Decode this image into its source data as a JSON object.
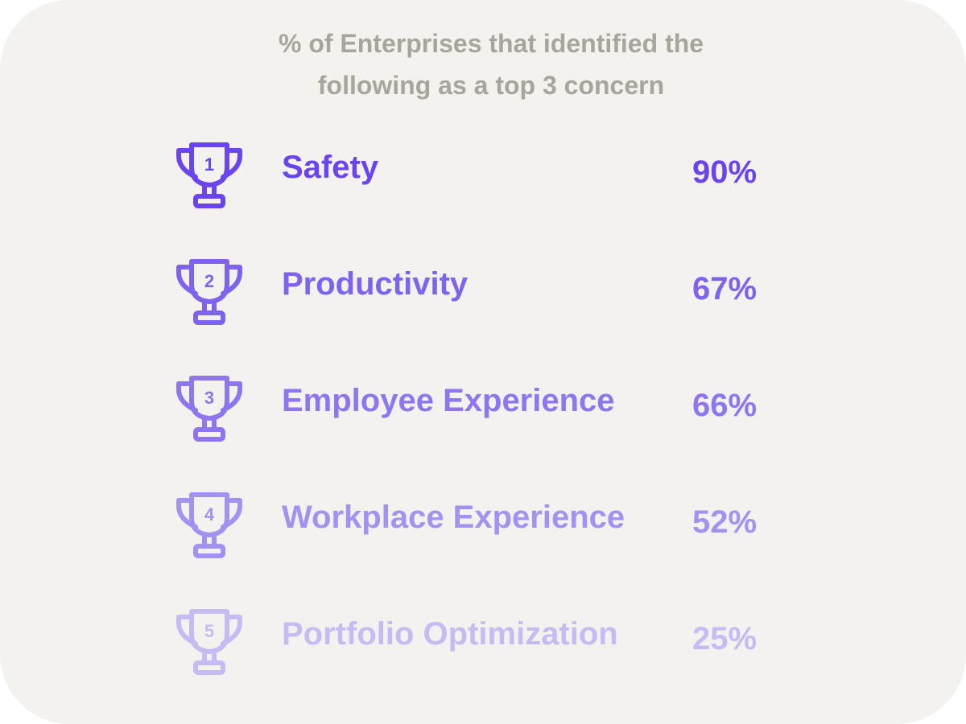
{
  "title": {
    "line1": "% of Enterprises that identified the",
    "line2": "following as a top 3 concern"
  },
  "colors": {
    "background": "#f3f2ef",
    "title": "#a7a69c",
    "rank_colors": [
      "#6a45ee",
      "#7f62ee",
      "#8f75ee",
      "#a591f0",
      "#c7bbf4"
    ]
  },
  "chart_data": {
    "type": "table",
    "title": "% of Enterprises that identified the following as a top 3 concern",
    "rows": [
      {
        "rank": "1",
        "label": "Safety",
        "value": 90,
        "display": "90%",
        "icon": "trophy-icon"
      },
      {
        "rank": "2",
        "label": "Productivity",
        "value": 67,
        "display": "67%",
        "icon": "trophy-icon"
      },
      {
        "rank": "3",
        "label": "Employee Experience",
        "value": 66,
        "display": "66%",
        "icon": "trophy-icon"
      },
      {
        "rank": "4",
        "label": "Workplace Experience",
        "value": 52,
        "display": "52%",
        "icon": "trophy-icon"
      },
      {
        "rank": "5",
        "label": "Portfolio Optimization",
        "value": 25,
        "display": "25%",
        "icon": "trophy-icon"
      }
    ]
  }
}
